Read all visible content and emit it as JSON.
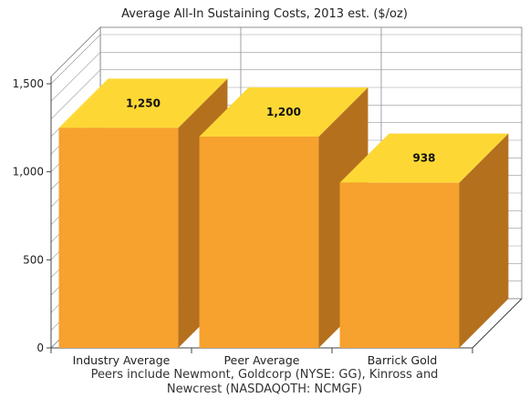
{
  "chart_data": {
    "type": "bar",
    "title": "Average All-In Sustaining Costs, 2013 est. ($/oz)",
    "categories": [
      "Industry Average",
      "Peer Average",
      "Barrick Gold"
    ],
    "values": [
      1250,
      1200,
      938
    ],
    "data_labels": [
      "1,250",
      "1,200",
      "938"
    ],
    "yticks": [
      {
        "value": 0,
        "label": "0"
      },
      {
        "value": 500,
        "label": "500"
      },
      {
        "value": 1000,
        "label": "1,000"
      },
      {
        "value": 1500,
        "label": "1,500"
      }
    ],
    "ylim": [
      0,
      1500
    ],
    "grid": true,
    "style": "3d",
    "colors": {
      "front": "#F7A12E",
      "top": "#FDD835",
      "side": "#B5701E"
    }
  },
  "footnote": {
    "line1": "Peers include Newmont, Goldcorp (NYSE: GG), Kinross and",
    "line2": "Newcrest (NASDAQOTH: NCMGF)"
  }
}
